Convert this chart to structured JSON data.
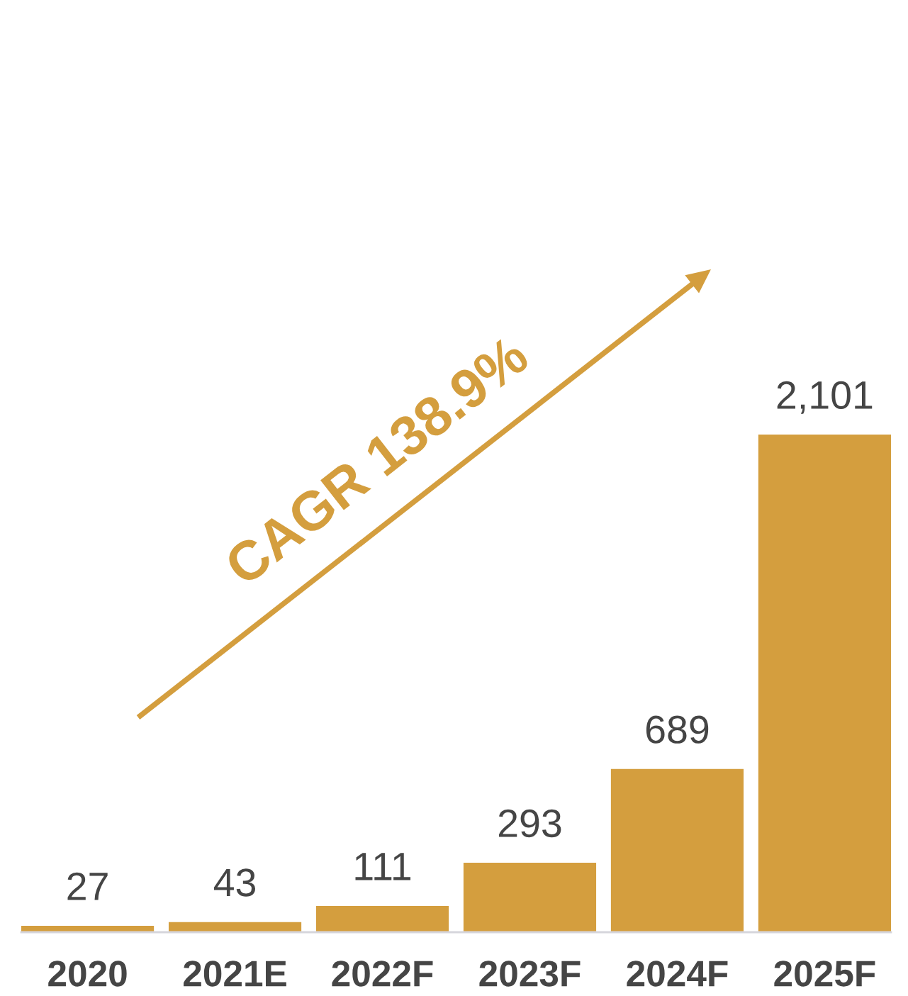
{
  "chart_data": {
    "type": "bar",
    "categories": [
      "2020",
      "2021E",
      "2022F",
      "2023F",
      "2024F",
      "2025F"
    ],
    "values": [
      27,
      43,
      111,
      293,
      689,
      2101
    ],
    "value_labels": [
      "27",
      "43",
      "111",
      "293",
      "689",
      "2,101"
    ],
    "color": "#d49e3e",
    "annotations": [
      "CAGR 138.9%"
    ],
    "tick_labels": "x"
  }
}
